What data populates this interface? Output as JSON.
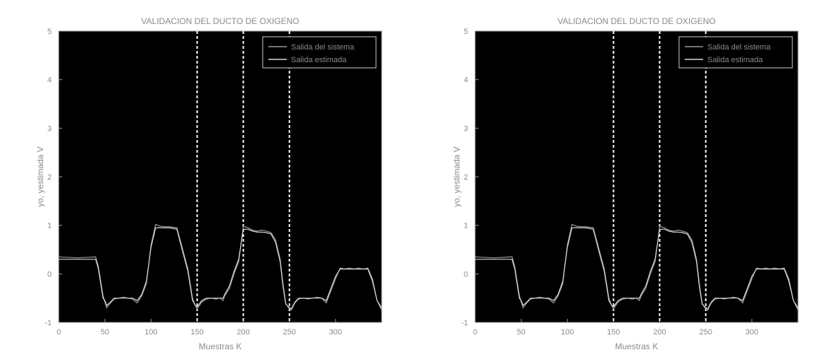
{
  "chart_data": [
    {
      "type": "line",
      "title": "VALIDACION DEL DUCTO DE OXIGENO",
      "xlabel": "Muestras K",
      "ylabel": "yo, yestimada V",
      "xlim": [
        0,
        350
      ],
      "ylim": [
        -1,
        5
      ],
      "xticks": [
        "0",
        "50",
        "100",
        "150",
        "200",
        "250",
        "300"
      ],
      "yticks": [
        "-1",
        "0",
        "1",
        "2",
        "3",
        "4",
        "5"
      ],
      "vlines": [
        150,
        200,
        250
      ],
      "legend": [
        "Salida del sistema",
        "Salida estimada"
      ],
      "legend_position": "top-right",
      "background": "#000000",
      "series": [
        {
          "name": "Salida del sistema",
          "x": [
            0,
            20,
            40,
            43,
            48,
            50,
            52,
            55,
            60,
            65,
            70,
            75,
            80,
            85,
            90,
            95,
            100,
            105,
            110,
            115,
            120,
            128,
            133,
            140,
            145,
            148,
            150,
            155,
            160,
            165,
            170,
            175,
            178,
            180,
            185,
            190,
            195,
            200,
            205,
            210,
            215,
            220,
            225,
            230,
            235,
            240,
            243,
            246,
            249,
            252,
            256,
            260,
            265,
            270,
            275,
            280,
            285,
            290,
            295,
            300,
            305,
            310,
            315,
            320,
            325,
            330,
            335,
            340,
            345,
            350
          ],
          "y": [
            0.35,
            0.33,
            0.35,
            0.15,
            -0.45,
            -0.58,
            -0.7,
            -0.62,
            -0.52,
            -0.5,
            -0.48,
            -0.5,
            -0.52,
            -0.6,
            -0.45,
            -0.2,
            0.6,
            1.02,
            0.98,
            0.97,
            0.97,
            0.95,
            0.6,
            0.1,
            -0.5,
            -0.65,
            -0.72,
            -0.58,
            -0.52,
            -0.5,
            -0.52,
            -0.5,
            -0.55,
            -0.45,
            -0.3,
            0.0,
            0.25,
            0.98,
            0.95,
            0.9,
            0.88,
            0.9,
            0.88,
            0.85,
            0.7,
            0.3,
            -0.2,
            -0.6,
            -0.7,
            -0.75,
            -0.6,
            -0.52,
            -0.5,
            -0.52,
            -0.5,
            -0.48,
            -0.5,
            -0.6,
            -0.35,
            -0.1,
            0.12,
            0.1,
            0.12,
            0.1,
            0.12,
            0.1,
            0.12,
            -0.1,
            -0.55,
            -0.75
          ]
        },
        {
          "name": "Salida estimada",
          "x": [
            0,
            20,
            40,
            43,
            48,
            50,
            52,
            55,
            60,
            65,
            70,
            75,
            80,
            85,
            90,
            95,
            100,
            105,
            110,
            115,
            120,
            128,
            133,
            140,
            145,
            148,
            150,
            155,
            160,
            165,
            170,
            175,
            178,
            180,
            185,
            190,
            195,
            200,
            205,
            210,
            215,
            220,
            225,
            230,
            235,
            240,
            243,
            246,
            249,
            252,
            256,
            260,
            265,
            270,
            275,
            280,
            285,
            290,
            295,
            300,
            305,
            310,
            315,
            320,
            325,
            330,
            335,
            340,
            345,
            350
          ],
          "y": [
            0.3,
            0.3,
            0.3,
            0.1,
            -0.5,
            -0.55,
            -0.65,
            -0.6,
            -0.5,
            -0.5,
            -0.5,
            -0.5,
            -0.5,
            -0.55,
            -0.42,
            -0.15,
            0.55,
            0.95,
            0.95,
            0.95,
            0.95,
            0.92,
            0.55,
            0.05,
            -0.55,
            -0.65,
            -0.68,
            -0.55,
            -0.5,
            -0.5,
            -0.5,
            -0.5,
            -0.5,
            -0.42,
            -0.25,
            0.05,
            0.3,
            0.92,
            0.92,
            0.88,
            0.86,
            0.86,
            0.85,
            0.82,
            0.65,
            0.25,
            -0.25,
            -0.62,
            -0.68,
            -0.72,
            -0.58,
            -0.5,
            -0.5,
            -0.5,
            -0.5,
            -0.5,
            -0.5,
            -0.55,
            -0.3,
            -0.05,
            0.1,
            0.1,
            0.1,
            0.1,
            0.1,
            0.1,
            0.1,
            -0.15,
            -0.55,
            -0.7
          ]
        }
      ]
    },
    {
      "type": "line",
      "title": "VALIDACION DEL DUCTO DE OXIGENO",
      "xlabel": "Muestras K",
      "ylabel": "yo, yestimada V",
      "xlim": [
        0,
        350
      ],
      "ylim": [
        -1,
        5
      ],
      "xticks": [
        "0",
        "50",
        "100",
        "150",
        "200",
        "250",
        "300"
      ],
      "yticks": [
        "-1",
        "0",
        "1",
        "2",
        "3",
        "4",
        "5"
      ],
      "vlines": [
        150,
        200,
        250
      ],
      "legend": [
        "Salida del sistema",
        "Salida estimada"
      ],
      "legend_position": "top-right",
      "background": "#000000",
      "series": [
        {
          "name": "Salida del sistema",
          "x": [
            0,
            20,
            40,
            43,
            48,
            50,
            52,
            55,
            60,
            65,
            70,
            75,
            80,
            85,
            90,
            95,
            100,
            105,
            110,
            115,
            120,
            128,
            133,
            140,
            145,
            148,
            150,
            155,
            160,
            165,
            170,
            175,
            178,
            180,
            185,
            190,
            195,
            200,
            205,
            210,
            215,
            220,
            225,
            230,
            235,
            240,
            243,
            246,
            249,
            252,
            256,
            260,
            265,
            270,
            275,
            280,
            285,
            290,
            295,
            300,
            305,
            310,
            315,
            320,
            325,
            330,
            335,
            340,
            345,
            350
          ],
          "y": [
            0.35,
            0.33,
            0.35,
            0.15,
            -0.45,
            -0.58,
            -0.7,
            -0.62,
            -0.52,
            -0.5,
            -0.48,
            -0.5,
            -0.52,
            -0.6,
            -0.45,
            -0.2,
            0.6,
            1.02,
            0.98,
            0.97,
            0.97,
            0.95,
            0.6,
            0.1,
            -0.5,
            -0.65,
            -0.72,
            -0.58,
            -0.52,
            -0.5,
            -0.52,
            -0.5,
            -0.55,
            -0.45,
            -0.3,
            0.0,
            0.25,
            0.98,
            0.95,
            0.9,
            0.88,
            0.9,
            0.88,
            0.85,
            0.7,
            0.3,
            -0.2,
            -0.6,
            -0.7,
            -0.75,
            -0.6,
            -0.52,
            -0.5,
            -0.52,
            -0.5,
            -0.48,
            -0.5,
            -0.6,
            -0.35,
            -0.1,
            0.12,
            0.1,
            0.12,
            0.1,
            0.12,
            0.1,
            0.12,
            -0.1,
            -0.55,
            -0.75
          ]
        },
        {
          "name": "Salida estimada",
          "x": [
            0,
            20,
            40,
            43,
            48,
            50,
            52,
            55,
            60,
            65,
            70,
            75,
            80,
            85,
            90,
            95,
            100,
            105,
            110,
            115,
            120,
            128,
            133,
            140,
            145,
            148,
            150,
            155,
            160,
            165,
            170,
            175,
            178,
            180,
            185,
            190,
            195,
            200,
            205,
            210,
            215,
            220,
            225,
            230,
            235,
            240,
            243,
            246,
            249,
            252,
            256,
            260,
            265,
            270,
            275,
            280,
            285,
            290,
            295,
            300,
            305,
            310,
            315,
            320,
            325,
            330,
            335,
            340,
            345,
            350
          ],
          "y": [
            0.3,
            0.3,
            0.3,
            0.1,
            -0.5,
            -0.55,
            -0.65,
            -0.6,
            -0.5,
            -0.5,
            -0.5,
            -0.5,
            -0.5,
            -0.55,
            -0.42,
            -0.15,
            0.55,
            0.95,
            0.95,
            0.95,
            0.95,
            0.92,
            0.55,
            0.05,
            -0.55,
            -0.65,
            -0.68,
            -0.55,
            -0.5,
            -0.5,
            -0.5,
            -0.5,
            -0.5,
            -0.42,
            -0.25,
            0.05,
            0.3,
            0.92,
            0.92,
            0.88,
            0.86,
            0.86,
            0.85,
            0.82,
            0.65,
            0.25,
            -0.25,
            -0.62,
            -0.68,
            -0.72,
            -0.58,
            -0.5,
            -0.5,
            -0.5,
            -0.5,
            -0.5,
            -0.5,
            -0.55,
            -0.3,
            -0.05,
            0.1,
            0.1,
            0.1,
            0.1,
            0.1,
            0.1,
            0.1,
            -0.15,
            -0.55,
            -0.7
          ]
        }
      ]
    }
  ]
}
